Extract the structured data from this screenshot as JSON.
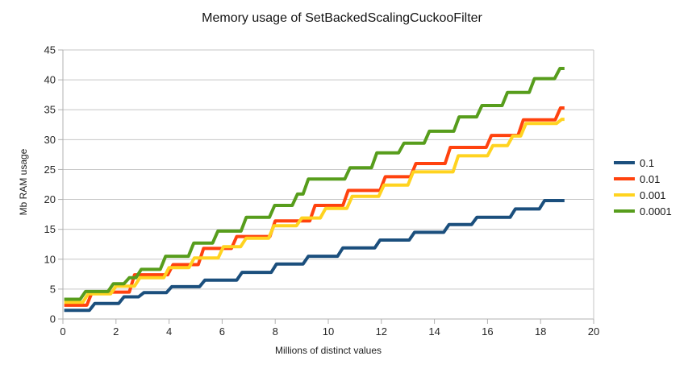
{
  "chart_data": {
    "type": "line",
    "style": "step",
    "title": "Memory usage of SetBackedScalingCuckooFilter",
    "xlabel": "Millions of distinct values",
    "ylabel": "Mb RAM usage",
    "xlim": [
      0,
      20
    ],
    "ylim": [
      0,
      45
    ],
    "xticks": [
      0,
      2,
      4,
      6,
      8,
      10,
      12,
      14,
      16,
      18,
      20
    ],
    "yticks": [
      0,
      5,
      10,
      15,
      20,
      25,
      30,
      35,
      40,
      45
    ],
    "grid": "horizontal",
    "legend_position": "right",
    "x_end": 18.9,
    "axis_color": "#b0b0b0",
    "grid_color": "#c6c6c6",
    "tick_label_color": "#262626",
    "series": [
      {
        "name": "0.1",
        "color": "#1b4f7d",
        "steps": [
          [
            0.05,
            1.45
          ],
          [
            1.2,
            2.6
          ],
          [
            2.3,
            3.7
          ],
          [
            3.05,
            4.4
          ],
          [
            4.1,
            5.4
          ],
          [
            5.35,
            6.5
          ],
          [
            6.75,
            7.8
          ],
          [
            8.05,
            9.2
          ],
          [
            9.25,
            10.5
          ],
          [
            10.55,
            11.9
          ],
          [
            11.95,
            13.2
          ],
          [
            13.25,
            14.5
          ],
          [
            14.55,
            15.8
          ],
          [
            15.6,
            17.0
          ],
          [
            17.05,
            18.4
          ],
          [
            18.15,
            19.8
          ]
        ]
      },
      {
        "name": "0.01",
        "color": "#ff420e",
        "steps": [
          [
            0.05,
            2.3
          ],
          [
            1.1,
            4.5
          ],
          [
            2.7,
            7.4
          ],
          [
            4.15,
            9.1
          ],
          [
            5.3,
            11.8
          ],
          [
            6.55,
            13.8
          ],
          [
            8.0,
            16.4
          ],
          [
            9.5,
            19.0
          ],
          [
            10.75,
            21.5
          ],
          [
            12.15,
            23.8
          ],
          [
            13.3,
            26.0
          ],
          [
            14.6,
            28.7
          ],
          [
            16.15,
            30.7
          ],
          [
            17.35,
            33.3
          ],
          [
            18.75,
            35.3
          ]
        ]
      },
      {
        "name": "0.001",
        "color": "#ffd320",
        "steps": [
          [
            0.05,
            2.8
          ],
          [
            0.95,
            4.2
          ],
          [
            2.0,
            5.5
          ],
          [
            2.9,
            6.9
          ],
          [
            4.0,
            8.6
          ],
          [
            4.95,
            10.2
          ],
          [
            6.05,
            12.1
          ],
          [
            6.9,
            13.5
          ],
          [
            7.95,
            15.6
          ],
          [
            9.0,
            16.9
          ],
          [
            9.9,
            18.5
          ],
          [
            10.9,
            20.5
          ],
          [
            12.1,
            22.4
          ],
          [
            13.2,
            24.6
          ],
          [
            14.9,
            27.3
          ],
          [
            16.2,
            29.0
          ],
          [
            16.95,
            30.6
          ],
          [
            17.45,
            32.7
          ],
          [
            18.8,
            33.4
          ]
        ]
      },
      {
        "name": "0.0001",
        "color": "#579d1c",
        "steps": [
          [
            0.05,
            3.3
          ],
          [
            0.85,
            4.6
          ],
          [
            1.9,
            5.9
          ],
          [
            2.5,
            6.9
          ],
          [
            2.95,
            8.3
          ],
          [
            3.87,
            10.5
          ],
          [
            4.93,
            12.7
          ],
          [
            5.84,
            14.7
          ],
          [
            6.91,
            17.0
          ],
          [
            7.98,
            19.0
          ],
          [
            8.84,
            20.9
          ],
          [
            9.25,
            23.4
          ],
          [
            10.82,
            25.3
          ],
          [
            11.83,
            27.8
          ],
          [
            12.85,
            29.4
          ],
          [
            13.81,
            31.4
          ],
          [
            14.93,
            33.8
          ],
          [
            15.79,
            35.7
          ],
          [
            16.75,
            37.9
          ],
          [
            17.77,
            40.2
          ],
          [
            18.73,
            41.9
          ]
        ]
      }
    ]
  }
}
